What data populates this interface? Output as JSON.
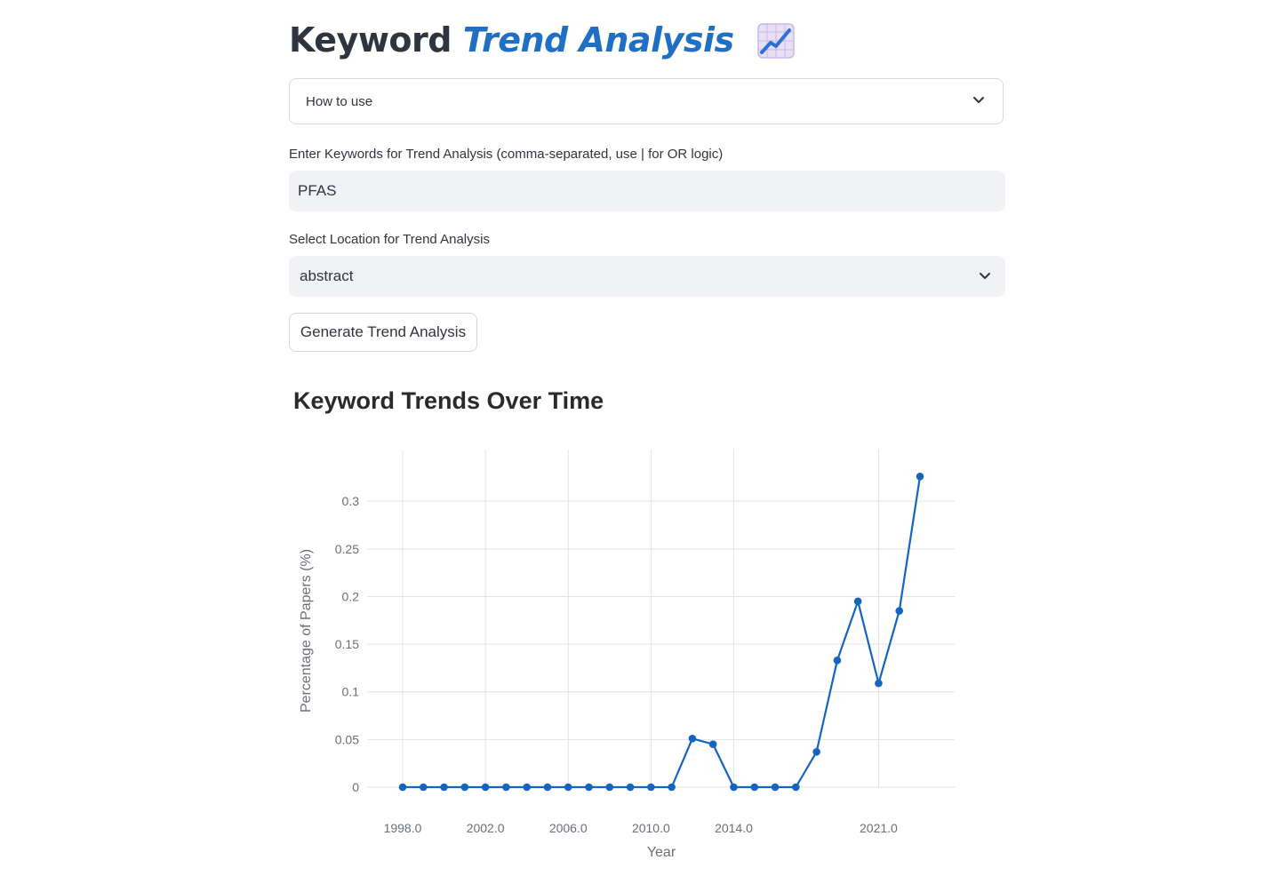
{
  "header": {
    "title_plain": "Keyword",
    "title_accent": "Trend Analysis",
    "emoji_icon": "chart-increasing-icon"
  },
  "expander": {
    "label": "How to use"
  },
  "keywords": {
    "label": "Enter Keywords for Trend Analysis (comma-separated, use | for OR logic)",
    "value": "PFAS"
  },
  "location": {
    "label": "Select Location for Trend Analysis",
    "selected": "abstract"
  },
  "button": {
    "label": "Generate Trend Analysis"
  },
  "colors": {
    "accent": "#1f6fc4",
    "line": "#1565c0",
    "input_bg": "#f0f2f6"
  },
  "chart_data": {
    "type": "line",
    "title": "Keyword Trends Over Time",
    "xlabel": "Year",
    "ylabel": "Percentage of Papers (%)",
    "xlim": [
      1998,
      2023
    ],
    "ylim": [
      0,
      0.33
    ],
    "x_tick_values": [
      1998,
      2002,
      2006,
      2010,
      2014,
      2021
    ],
    "x_tick_labels": [
      "1998.0",
      "2002.0",
      "2006.0",
      "2010.0",
      "2014.0",
      "2021.0"
    ],
    "y_tick_values": [
      0,
      0.05,
      0.1,
      0.15,
      0.2,
      0.25,
      0.3
    ],
    "y_tick_labels": [
      "0",
      "0.05",
      "0.1",
      "0.15",
      "0.2",
      "0.25",
      "0.3"
    ],
    "grid": true,
    "series": [
      {
        "x": [
          1998,
          1999,
          2000,
          2001,
          2002,
          2003,
          2004,
          2005,
          2006,
          2007,
          2008,
          2009,
          2010,
          2011,
          2012,
          2013,
          2014,
          2015,
          2016,
          2017,
          2018,
          2019,
          2020,
          2021,
          2022,
          2023
        ],
        "values": [
          0,
          0,
          0,
          0,
          0,
          0,
          0,
          0,
          0,
          0,
          0,
          0,
          0,
          0,
          0.051,
          0.045,
          0,
          0,
          0,
          0,
          0.037,
          0.133,
          0.195,
          0.109,
          0.185,
          0.326
        ]
      }
    ]
  }
}
